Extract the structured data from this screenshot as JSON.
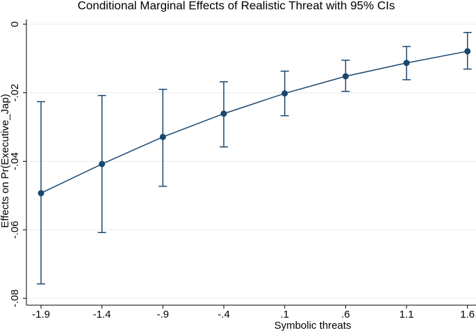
{
  "chart_data": {
    "type": "line",
    "title": "Conditional Marginal Effects of Realistic Threat with 95% CIs",
    "x_label": "Symbolic threats",
    "y_label": "Effects on Pr(Executive_Jap)",
    "x": [
      -1.9,
      -1.4,
      -0.9,
      -0.4,
      0.1,
      0.6,
      1.1,
      1.6
    ],
    "series": [
      {
        "color": "#1a476f",
        "values": [
          -0.0493,
          -0.0408,
          -0.0329,
          -0.0261,
          -0.0202,
          -0.0152,
          -0.0113,
          -0.0079
        ],
        "lower": [
          -0.0758,
          -0.0608,
          -0.0473,
          -0.0358,
          -0.0267,
          -0.0196,
          -0.0162,
          -0.0131
        ],
        "upper": [
          -0.0226,
          -0.0208,
          -0.019,
          -0.0168,
          -0.0137,
          -0.0105,
          -0.0065,
          -0.0024
        ]
      }
    ],
    "xlim": [
      -2.02,
      1.67
    ],
    "ylim": [
      -0.082,
      0.0014
    ],
    "xticks": [
      -1.9,
      -1.4,
      {
        "value": -0.9,
        "label": "-.9"
      },
      {
        "value": -0.4,
        "label": "-.4"
      },
      {
        "value": 0.1,
        "label": ".1"
      },
      {
        "value": 0.6,
        "label": ".6"
      },
      1.1,
      1.6
    ],
    "yticks": [
      0,
      {
        "value": -0.02,
        "label": "-.02"
      },
      {
        "value": -0.04,
        "label": "-.04"
      },
      {
        "value": -0.06,
        "label": "-.06"
      },
      {
        "value": -0.08,
        "label": "-.08"
      }
    ],
    "grid": true
  }
}
